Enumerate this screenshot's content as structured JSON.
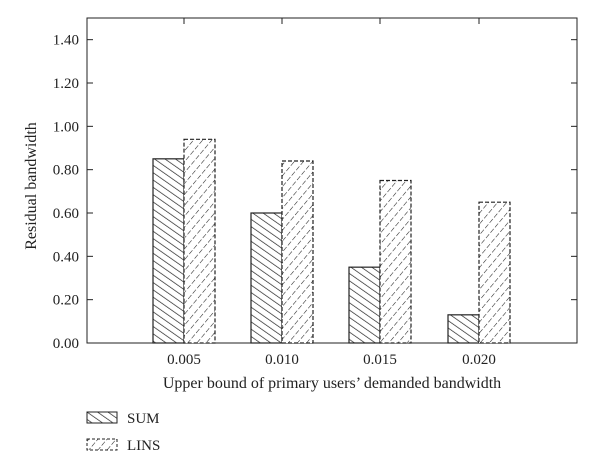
{
  "chart_data": {
    "type": "bar",
    "categories": [
      "0.005",
      "0.010",
      "0.015",
      "0.020"
    ],
    "series": [
      {
        "name": "SUM",
        "values": [
          0.85,
          0.6,
          0.35,
          0.13
        ],
        "pattern": "hatch-forward"
      },
      {
        "name": "LINS",
        "values": [
          0.94,
          0.84,
          0.75,
          0.65
        ],
        "pattern": "hatch-backward-dashed"
      }
    ],
    "xlabel": "Upper bound of primary users’ demanded bandwidth",
    "ylabel": "Residual bandwidth",
    "ylim": [
      0,
      1.5
    ],
    "yticks": [
      "0.00",
      "0.20",
      "0.40",
      "0.60",
      "0.80",
      "1.00",
      "1.20",
      "1.40"
    ],
    "ytick_values": [
      0,
      0.2,
      0.4,
      0.6,
      0.8,
      1.0,
      1.2,
      1.4
    ],
    "grid": false,
    "legend_position": "bottom-left",
    "colors": {
      "stroke": "#222222",
      "background": "#ffffff"
    }
  }
}
